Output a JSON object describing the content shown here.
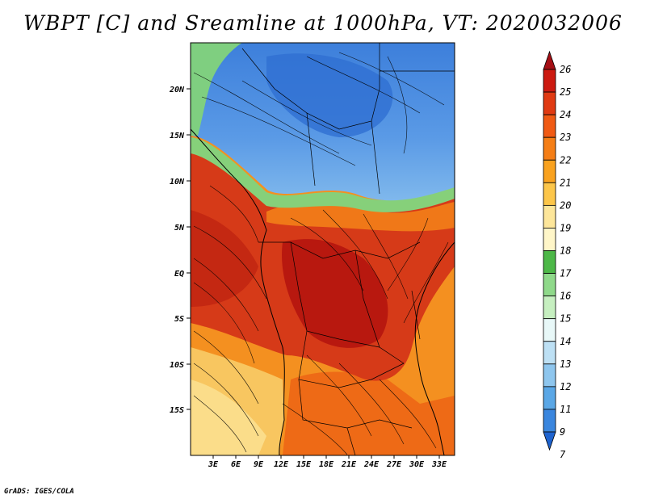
{
  "title": "WBPT [C] and Sreamline at 1000hPa, VT: 2020032006",
  "credit": "GrADS: IGES/COLA",
  "lon_labels": [
    "3E",
    "6E",
    "9E",
    "12E",
    "15E",
    "18E",
    "21E",
    "24E",
    "27E",
    "30E",
    "33E"
  ],
  "lat_labels": [
    "20N",
    "15N",
    "10N",
    "5N",
    "EQ",
    "5S",
    "10S",
    "15S"
  ],
  "colorbar": {
    "labels": [
      "26",
      "25",
      "24",
      "23",
      "22",
      "21",
      "20",
      "19",
      "18",
      "17",
      "16",
      "15",
      "14",
      "13",
      "12",
      "11",
      "9",
      "7"
    ],
    "colors": [
      "#a50f15",
      "#cc1a10",
      "#e03a12",
      "#f05a14",
      "#f57e16",
      "#f9a21f",
      "#fcc64a",
      "#fde69a",
      "#fff6c8",
      "#4db848",
      "#8fd98a",
      "#c6efc0",
      "#e8f8f8",
      "#bde0f4",
      "#8ec6ee",
      "#5aa7e6",
      "#3a86de",
      "#1e63cf"
    ]
  },
  "fields": {
    "north_color": "#4a8fe0",
    "sahel_color": "#86d07a",
    "equator_color": "#d6321a",
    "south_color": "#f49020",
    "southwest_color": "#f8c660"
  }
}
